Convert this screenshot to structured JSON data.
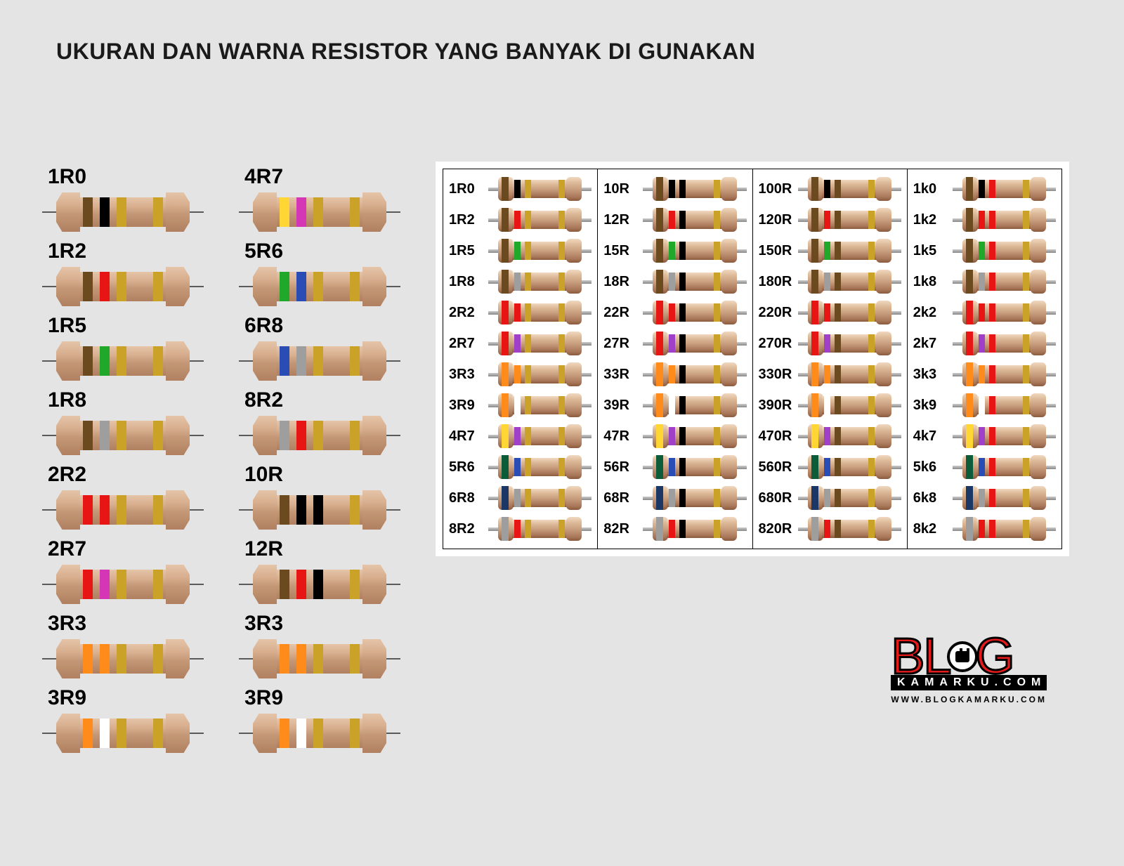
{
  "title": "UKURAN DAN WARNA RESISTOR YANG BANYAK DI GUNAKAN",
  "colors": {
    "black": "#000000",
    "brown": "#6b4a1f",
    "red": "#e81515",
    "orange": "#ff8c1a",
    "yellow": "#ffd633",
    "green": "#1fa82a",
    "blue": "#2a4db5",
    "violet": "#a03fc7",
    "grey": "#9e9e9e",
    "white": "#ffffff",
    "gold": "#c9a227",
    "silver": "#c0c0c0",
    "magenta": "#d436b5",
    "body": "#c9a080",
    "darkblue": "#1a3766",
    "darkgreen": "#0c5c3a"
  },
  "left_columns": [
    [
      {
        "label": "1R0",
        "bands": [
          "brown",
          "black",
          "gold",
          "gold"
        ]
      },
      {
        "label": "1R2",
        "bands": [
          "brown",
          "red",
          "gold",
          "gold"
        ]
      },
      {
        "label": "1R5",
        "bands": [
          "brown",
          "green",
          "gold",
          "gold"
        ]
      },
      {
        "label": "1R8",
        "bands": [
          "brown",
          "grey",
          "gold",
          "gold"
        ]
      },
      {
        "label": "2R2",
        "bands": [
          "red",
          "red",
          "gold",
          "gold"
        ]
      },
      {
        "label": "2R7",
        "bands": [
          "red",
          "magenta",
          "gold",
          "gold"
        ]
      },
      {
        "label": "3R3",
        "bands": [
          "orange",
          "orange",
          "gold",
          "gold"
        ]
      },
      {
        "label": "3R9",
        "bands": [
          "orange",
          "white",
          "gold",
          "gold"
        ]
      }
    ],
    [
      {
        "label": "4R7",
        "bands": [
          "yellow",
          "magenta",
          "gold",
          "gold"
        ]
      },
      {
        "label": "5R6",
        "bands": [
          "green",
          "blue",
          "gold",
          "gold"
        ]
      },
      {
        "label": "6R8",
        "bands": [
          "blue",
          "grey",
          "gold",
          "gold"
        ]
      },
      {
        "label": "8R2",
        "bands": [
          "grey",
          "red",
          "gold",
          "gold"
        ]
      },
      {
        "label": "10R",
        "bands": [
          "brown",
          "black",
          "black",
          "gold"
        ]
      },
      {
        "label": "12R",
        "bands": [
          "brown",
          "red",
          "black",
          "gold"
        ]
      },
      {
        "label": "3R3",
        "bands": [
          "orange",
          "orange",
          "gold",
          "gold"
        ]
      },
      {
        "label": "3R9",
        "bands": [
          "orange",
          "white",
          "gold",
          "gold"
        ]
      }
    ]
  ],
  "table_columns": [
    [
      {
        "label": "1R0",
        "cap": "brown",
        "b1": "black",
        "b2": "gold",
        "tol": "gold"
      },
      {
        "label": "1R2",
        "cap": "brown",
        "b1": "red",
        "b2": "gold",
        "tol": "gold"
      },
      {
        "label": "1R5",
        "cap": "brown",
        "b1": "green",
        "b2": "gold",
        "tol": "gold"
      },
      {
        "label": "1R8",
        "cap": "brown",
        "b1": "grey",
        "b2": "gold",
        "tol": "gold"
      },
      {
        "label": "2R2",
        "cap": "red",
        "b1": "red",
        "b2": "gold",
        "tol": "gold"
      },
      {
        "label": "2R7",
        "cap": "red",
        "b1": "violet",
        "b2": "gold",
        "tol": "gold"
      },
      {
        "label": "3R3",
        "cap": "orange",
        "b1": "orange",
        "b2": "gold",
        "tol": "gold"
      },
      {
        "label": "3R9",
        "cap": "orange",
        "b1": "white",
        "b2": "gold",
        "tol": "gold"
      },
      {
        "label": "4R7",
        "cap": "yellow",
        "b1": "violet",
        "b2": "gold",
        "tol": "gold"
      },
      {
        "label": "5R6",
        "cap": "darkgreen",
        "b1": "blue",
        "b2": "gold",
        "tol": "gold"
      },
      {
        "label": "6R8",
        "cap": "darkblue",
        "b1": "grey",
        "b2": "gold",
        "tol": "gold"
      },
      {
        "label": "8R2",
        "cap": "grey",
        "b1": "red",
        "b2": "gold",
        "tol": "gold"
      }
    ],
    [
      {
        "label": "10R",
        "cap": "brown",
        "b1": "black",
        "b2": "black",
        "tol": "gold"
      },
      {
        "label": "12R",
        "cap": "brown",
        "b1": "red",
        "b2": "black",
        "tol": "gold"
      },
      {
        "label": "15R",
        "cap": "brown",
        "b1": "green",
        "b2": "black",
        "tol": "gold"
      },
      {
        "label": "18R",
        "cap": "brown",
        "b1": "grey",
        "b2": "black",
        "tol": "gold"
      },
      {
        "label": "22R",
        "cap": "red",
        "b1": "red",
        "b2": "black",
        "tol": "gold"
      },
      {
        "label": "27R",
        "cap": "red",
        "b1": "violet",
        "b2": "black",
        "tol": "gold"
      },
      {
        "label": "33R",
        "cap": "orange",
        "b1": "orange",
        "b2": "black",
        "tol": "gold"
      },
      {
        "label": "39R",
        "cap": "orange",
        "b1": "white",
        "b2": "black",
        "tol": "gold"
      },
      {
        "label": "47R",
        "cap": "yellow",
        "b1": "violet",
        "b2": "black",
        "tol": "gold"
      },
      {
        "label": "56R",
        "cap": "darkgreen",
        "b1": "blue",
        "b2": "black",
        "tol": "gold"
      },
      {
        "label": "68R",
        "cap": "darkblue",
        "b1": "grey",
        "b2": "black",
        "tol": "gold"
      },
      {
        "label": "82R",
        "cap": "grey",
        "b1": "red",
        "b2": "black",
        "tol": "gold"
      }
    ],
    [
      {
        "label": "100R",
        "cap": "brown",
        "b1": "black",
        "b2": "brown",
        "tol": "gold"
      },
      {
        "label": "120R",
        "cap": "brown",
        "b1": "red",
        "b2": "brown",
        "tol": "gold"
      },
      {
        "label": "150R",
        "cap": "brown",
        "b1": "green",
        "b2": "brown",
        "tol": "gold"
      },
      {
        "label": "180R",
        "cap": "brown",
        "b1": "grey",
        "b2": "brown",
        "tol": "gold"
      },
      {
        "label": "220R",
        "cap": "red",
        "b1": "red",
        "b2": "brown",
        "tol": "gold"
      },
      {
        "label": "270R",
        "cap": "red",
        "b1": "violet",
        "b2": "brown",
        "tol": "gold"
      },
      {
        "label": "330R",
        "cap": "orange",
        "b1": "orange",
        "b2": "brown",
        "tol": "gold"
      },
      {
        "label": "390R",
        "cap": "orange",
        "b1": "white",
        "b2": "brown",
        "tol": "gold"
      },
      {
        "label": "470R",
        "cap": "yellow",
        "b1": "violet",
        "b2": "brown",
        "tol": "gold"
      },
      {
        "label": "560R",
        "cap": "darkgreen",
        "b1": "blue",
        "b2": "brown",
        "tol": "gold"
      },
      {
        "label": "680R",
        "cap": "darkblue",
        "b1": "grey",
        "b2": "brown",
        "tol": "gold"
      },
      {
        "label": "820R",
        "cap": "grey",
        "b1": "red",
        "b2": "brown",
        "tol": "gold"
      }
    ],
    [
      {
        "label": "1k0",
        "cap": "brown",
        "b1": "black",
        "b2": "red",
        "tol": "gold"
      },
      {
        "label": "1k2",
        "cap": "brown",
        "b1": "red",
        "b2": "red",
        "tol": "gold"
      },
      {
        "label": "1k5",
        "cap": "brown",
        "b1": "green",
        "b2": "red",
        "tol": "gold"
      },
      {
        "label": "1k8",
        "cap": "brown",
        "b1": "grey",
        "b2": "red",
        "tol": "gold"
      },
      {
        "label": "2k2",
        "cap": "red",
        "b1": "red",
        "b2": "red",
        "tol": "gold"
      },
      {
        "label": "2k7",
        "cap": "red",
        "b1": "violet",
        "b2": "red",
        "tol": "gold"
      },
      {
        "label": "3k3",
        "cap": "orange",
        "b1": "orange",
        "b2": "red",
        "tol": "gold"
      },
      {
        "label": "3k9",
        "cap": "orange",
        "b1": "white",
        "b2": "red",
        "tol": "gold"
      },
      {
        "label": "4k7",
        "cap": "yellow",
        "b1": "violet",
        "b2": "red",
        "tol": "gold"
      },
      {
        "label": "5k6",
        "cap": "darkgreen",
        "b1": "blue",
        "b2": "red",
        "tol": "gold"
      },
      {
        "label": "6k8",
        "cap": "darkblue",
        "b1": "grey",
        "b2": "red",
        "tol": "gold"
      },
      {
        "label": "8k2",
        "cap": "grey",
        "b1": "red",
        "b2": "red",
        "tol": "gold"
      }
    ]
  ],
  "logo": {
    "text_left": "BL",
    "text_right": "G",
    "sub": "KAMARKU.COM",
    "url": "WWW.BLOGKAMARKU.COM",
    "red": "#e31b1b"
  }
}
